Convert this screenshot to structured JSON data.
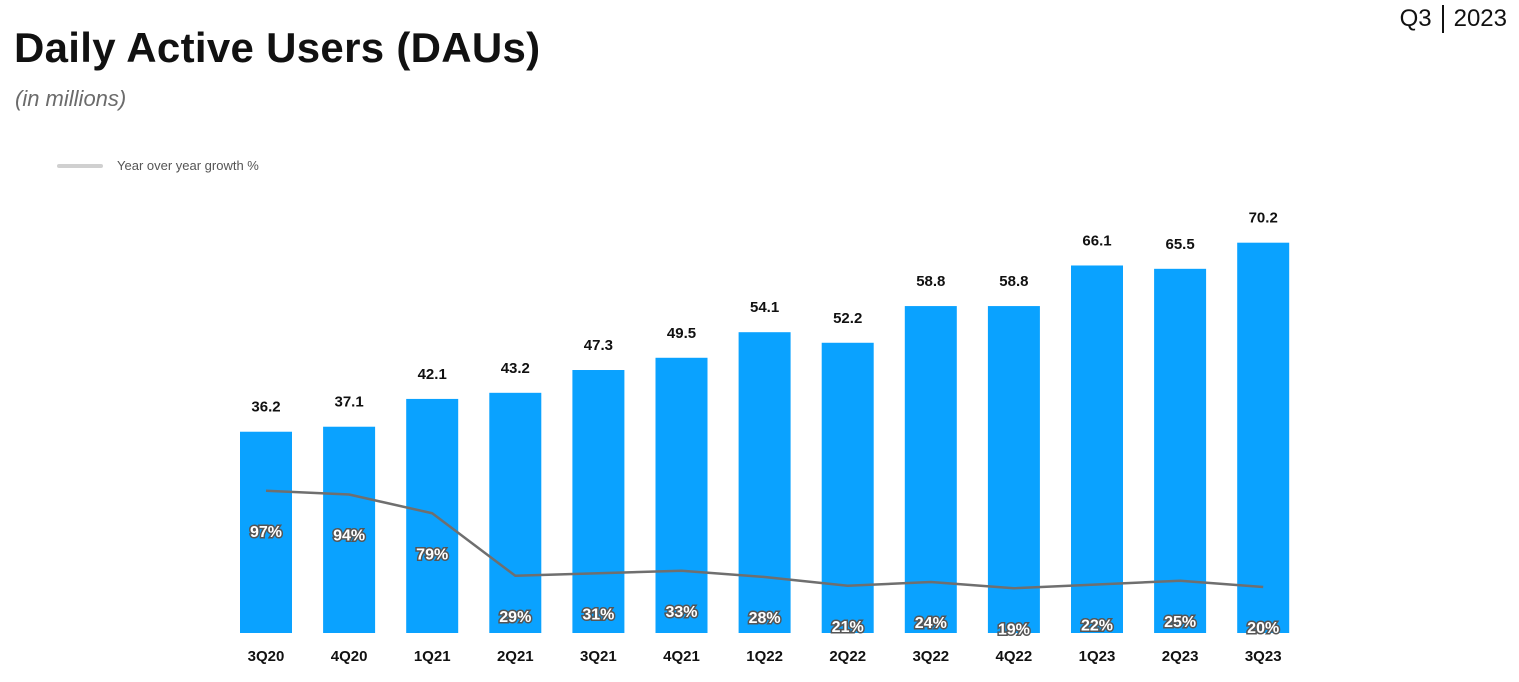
{
  "header": {
    "title": "Daily Active Users (DAUs)",
    "subtitle": "(in millions)",
    "period_quarter": "Q3",
    "period_year": "2023"
  },
  "legend": {
    "line_label": "Year over year growth %"
  },
  "colors": {
    "bar": "#0aa2ff",
    "line": "#6f6f6f",
    "legend_swatch": "#d0d0d0"
  },
  "chart_data": {
    "type": "bar",
    "categories": [
      "3Q20",
      "4Q20",
      "1Q21",
      "2Q21",
      "3Q21",
      "4Q21",
      "1Q22",
      "2Q22",
      "3Q22",
      "4Q22",
      "1Q23",
      "2Q23",
      "3Q23"
    ],
    "series": [
      {
        "type": "bar",
        "values": [
          36.2,
          37.1,
          42.1,
          43.2,
          47.3,
          49.5,
          54.1,
          52.2,
          58.8,
          58.8,
          66.1,
          65.5,
          70.2
        ],
        "labels": [
          "36.2",
          "37.1",
          "42.1",
          "43.2",
          "47.3",
          "49.5",
          "54.1",
          "52.2",
          "58.8",
          "58.8",
          "66.1",
          "65.5",
          "70.2"
        ]
      },
      {
        "name": "Year over year growth %",
        "type": "line",
        "values": [
          97,
          94,
          79,
          29,
          31,
          33,
          28,
          21,
          24,
          19,
          22,
          25,
          20
        ],
        "labels": [
          "97%",
          "94%",
          "79%",
          "29%",
          "31%",
          "33%",
          "28%",
          "21%",
          "24%",
          "19%",
          "22%",
          "25%",
          "20%"
        ]
      }
    ],
    "legend_position": "top-left",
    "grid": false
  }
}
